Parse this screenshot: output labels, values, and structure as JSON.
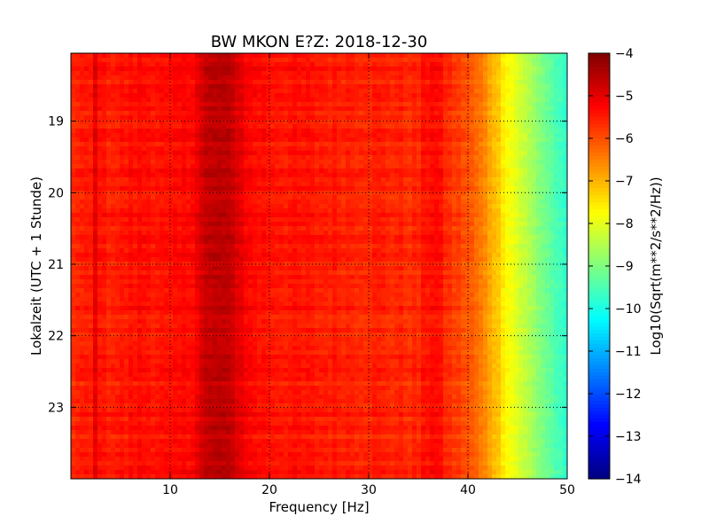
{
  "chart_data": {
    "type": "heatmap",
    "title": "BW MKON E?Z: 2018-12-30",
    "xlabel": "Frequency [Hz]",
    "ylabel": "Lokalzeit (UTC + 1 Stunde)",
    "colorbar_label": "Log10(Sqrt(m**2/s**2/Hz))",
    "colormap": "jet",
    "xlim": [
      0,
      50
    ],
    "ylim": [
      24,
      18.05
    ],
    "y_inverted": true,
    "x_ticks": [
      10,
      20,
      30,
      40,
      50
    ],
    "y_ticks": [
      19,
      20,
      21,
      22,
      23
    ],
    "clim": [
      -14,
      -4
    ],
    "colorbar_ticks": [
      -4,
      -5,
      -6,
      -7,
      -8,
      -9,
      -10,
      -11,
      -12,
      -13,
      -14
    ],
    "grid": true,
    "spectral_profile": {
      "frequency_hz": [
        0,
        2,
        2.6,
        3,
        5,
        7,
        10,
        12,
        13.5,
        15,
        16.5,
        18,
        20,
        25,
        30,
        35,
        36.5,
        38,
        40,
        41,
        42,
        43,
        44,
        45,
        46,
        47,
        48,
        49,
        50
      ],
      "log10_amplitude": [
        -5.6,
        -5.55,
        -4.9,
        -5.5,
        -5.5,
        -5.35,
        -5.45,
        -5.3,
        -4.75,
        -4.6,
        -4.8,
        -5.3,
        -5.4,
        -5.5,
        -5.55,
        -5.65,
        -5.25,
        -5.7,
        -6.05,
        -6.35,
        -6.75,
        -7.2,
        -7.7,
        -8.1,
        -8.5,
        -8.85,
        -9.2,
        -9.55,
        -9.95
      ]
    }
  }
}
